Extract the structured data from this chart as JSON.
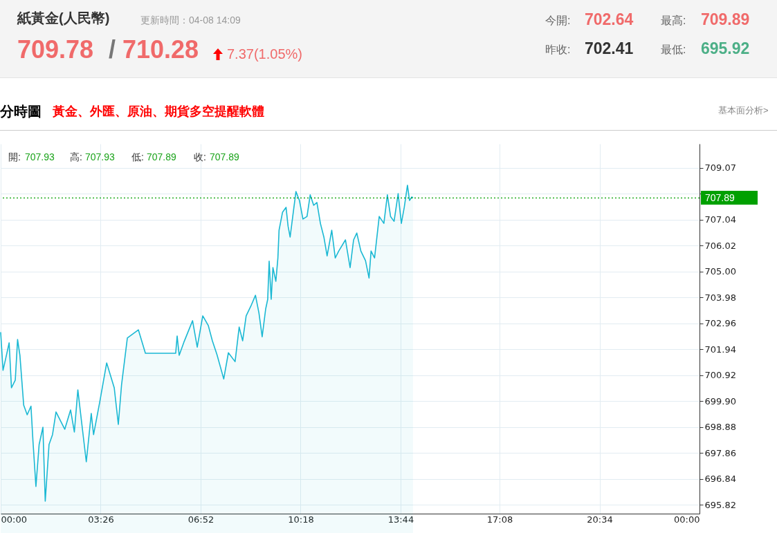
{
  "chart_data": {
    "type": "area",
    "title": "紙黃金(人民幣)",
    "subtitle": "更新時間：04-08 14:09",
    "annotations": [
      "709.78",
      "/",
      "710.28",
      "7.37(1.05%)",
      "今開:",
      "702.64",
      "最高:",
      "709.89",
      "昨收:",
      "702.41",
      "最低:",
      "695.92",
      "分時圖",
      "黃金、外匯、原油、期貨多空提醒軟體",
      "基本面分析>",
      "開:",
      "707.93",
      "高:",
      "707.93",
      "低:",
      "707.89",
      "收:",
      "707.89"
    ],
    "x": [
      0,
      0.08,
      0.16,
      0.29,
      0.37,
      0.5,
      0.58,
      0.66,
      0.79,
      0.91,
      1.04,
      1.11,
      1.21,
      1.32,
      1.45,
      1.53,
      1.66,
      1.78,
      1.9,
      2.2,
      2.4,
      2.53,
      2.65,
      2.78,
      2.94,
      3.11,
      3.19,
      3.4,
      3.64,
      3.9,
      4.04,
      4.15,
      4.35,
      4.73,
      4.97,
      6.01,
      6.06,
      6.13,
      6.29,
      6.59,
      6.75,
      6.94,
      7.13,
      7.27,
      7.43,
      7.66,
      7.82,
      8.05,
      8.19,
      8.31,
      8.43,
      8.59,
      8.75,
      8.87,
      8.98,
      9.1,
      9.17,
      9.22,
      9.29,
      9.35,
      9.45,
      9.52,
      9.56,
      9.68,
      9.8,
      9.87,
      9.94,
      10.03,
      10.14,
      10.26,
      10.38,
      10.52,
      10.63,
      10.75,
      10.86,
      10.98,
      11.1,
      11.21,
      11.37,
      11.49,
      11.61,
      11.84,
      12,
      12.12,
      12.23,
      12.37,
      12.53,
      12.65,
      12.72,
      12.84,
      13,
      13.16,
      13.28,
      13.39,
      13.51,
      13.65,
      13.76,
      13.86,
      13.97,
      14.04,
      14.12,
      14.16
    ],
    "series": [
      {
        "color": "#1ab8d3",
        "values": [
          702.61,
          701.11,
          701.51,
          702.19,
          700.42,
          700.72,
          702.32,
          701.7,
          699.74,
          699.36,
          699.7,
          698.3,
          696.54,
          698.19,
          698.87,
          695.96,
          698.19,
          698.58,
          699.47,
          698.79,
          699.55,
          698.68,
          700.34,
          699.06,
          697.51,
          699.41,
          698.58,
          699.85,
          701.4,
          700.42,
          698.98,
          700.53,
          702.38,
          702.7,
          701.78,
          701.78,
          702.46,
          701.7,
          702.21,
          703.06,
          702.02,
          703.25,
          702.87,
          702.27,
          701.72,
          700.77,
          701.8,
          701.45,
          702.81,
          702.27,
          703.25,
          703.63,
          704.06,
          703.36,
          702.43,
          703.52,
          703.9,
          705.4,
          703.9,
          705.15,
          704.61,
          705.53,
          706.62,
          707.33,
          707.52,
          706.78,
          706.35,
          707.16,
          708.14,
          707.79,
          707.06,
          707.16,
          708.01,
          707.6,
          707.71,
          706.89,
          706.35,
          705.61,
          706.62,
          705.53,
          705.8,
          706.24,
          705.15,
          706.24,
          706.51,
          705.8,
          705.42,
          704.74,
          705.8,
          705.53,
          707.16,
          706.89,
          708.01,
          707.16,
          706.97,
          708.06,
          706.89,
          707.52,
          708.39,
          707.79,
          707.93,
          707.89
        ]
      }
    ],
    "xlim": [
      0,
      24
    ],
    "xticks": [
      {
        "value": 0,
        "label": "00:00"
      },
      {
        "value": 3.433,
        "label": "03:26"
      },
      {
        "value": 6.867,
        "label": "06:52"
      },
      {
        "value": 10.3,
        "label": "10:18"
      },
      {
        "value": 13.733,
        "label": "13:44"
      },
      {
        "value": 17.133,
        "label": "17:08"
      },
      {
        "value": 20.567,
        "label": "20:34"
      },
      {
        "value": 24,
        "label": "00:00"
      }
    ],
    "ylim": [
      695.47,
      710.02
    ],
    "yticks": [
      {
        "value": 695.82,
        "label": "695.82"
      },
      {
        "value": 696.84,
        "label": "696.84"
      },
      {
        "value": 697.86,
        "label": "697.86"
      },
      {
        "value": 698.88,
        "label": "698.88"
      },
      {
        "value": 699.9,
        "label": "699.90"
      },
      {
        "value": 700.92,
        "label": "700.92"
      },
      {
        "value": 701.94,
        "label": "701.94"
      },
      {
        "value": 702.96,
        "label": "702.96"
      },
      {
        "value": 703.98,
        "label": "703.98"
      },
      {
        "value": 705,
        "label": "705.00"
      },
      {
        "value": 706.02,
        "label": "706.02"
      },
      {
        "value": 707.04,
        "label": "707.04"
      },
      {
        "value": 708.06,
        "label": null
      },
      {
        "value": 709.07,
        "label": "709.07"
      }
    ],
    "ref_lines": [
      {
        "axis": "y",
        "value": 707.89,
        "label": "707.89",
        "color": "#00a000",
        "line_style": "dotted"
      }
    ],
    "grid": true
  }
}
